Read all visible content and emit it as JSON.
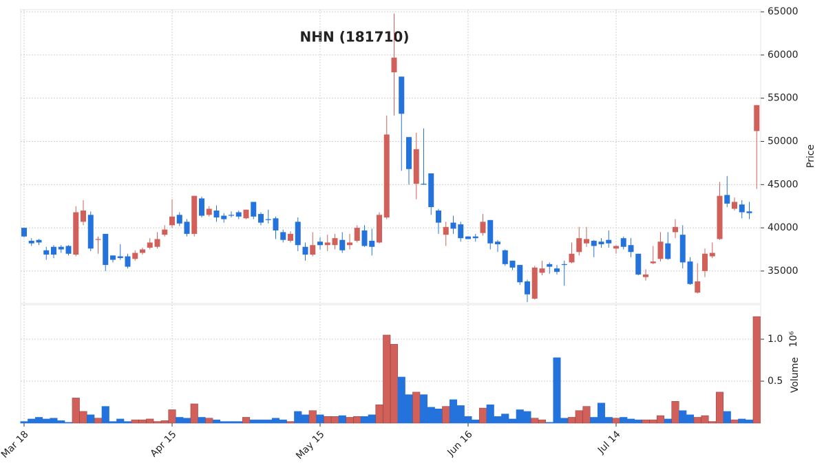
{
  "chart_data": {
    "type": "candlestick",
    "title": "NHN (181710)",
    "y_label": "Price",
    "volume_label": "Volume",
    "volume_scale": "10⁶",
    "categories": [
      "Mar 18",
      null,
      null,
      null,
      null,
      null,
      null,
      null,
      null,
      null,
      null,
      null,
      null,
      null,
      null,
      null,
      null,
      null,
      null,
      null,
      "Apr 15",
      null,
      null,
      null,
      null,
      null,
      null,
      null,
      null,
      null,
      null,
      null,
      null,
      null,
      null,
      null,
      null,
      null,
      null,
      null,
      "May 15",
      null,
      null,
      null,
      null,
      null,
      null,
      null,
      null,
      null,
      null,
      null,
      null,
      null,
      null,
      null,
      null,
      null,
      null,
      null,
      "Jun 16",
      null,
      null,
      null,
      null,
      null,
      null,
      null,
      null,
      null,
      null,
      null,
      null,
      null,
      null,
      null,
      null,
      null,
      null,
      null,
      "Jul 14",
      null,
      null,
      null,
      null,
      null,
      null,
      null,
      null,
      null,
      null,
      null,
      null,
      null,
      null,
      null,
      null,
      null,
      null,
      null
    ],
    "open": [
      40000,
      38500,
      38600,
      37400,
      37800,
      37800,
      37900,
      36900,
      40700,
      41500,
      38600,
      39300,
      36800,
      36700,
      36700,
      36400,
      37100,
      37700,
      37800,
      39200,
      40300,
      41500,
      40700,
      39300,
      43400,
      41500,
      42000,
      41400,
      41500,
      41800,
      41100,
      43000,
      41600,
      41000,
      41100,
      39500,
      38500,
      40700,
      37800,
      36900,
      38400,
      38000,
      38000,
      38600,
      38000,
      38500,
      39700,
      38500,
      38300,
      41200,
      58000,
      57500,
      50500,
      45100,
      45100,
      46300,
      42000,
      39200,
      40600,
      40400,
      39000,
      39000,
      39400,
      40900,
      38400,
      37400,
      36200,
      35700,
      33800,
      31800,
      34800,
      35800,
      35300,
      35800,
      36000,
      37200,
      38200,
      38500,
      38400,
      38600,
      37600,
      38800,
      38000,
      37000,
      34300,
      35900,
      36400,
      38200,
      39500,
      39200,
      36100,
      32500,
      35000,
      36700,
      38700,
      43800,
      42200,
      42700,
      41900,
      51200
    ],
    "high": [
      40000,
      38800,
      38700,
      37800,
      38000,
      38000,
      38000,
      42500,
      43200,
      41900,
      39000,
      39300,
      36800,
      38100,
      37000,
      37400,
      37700,
      38800,
      39500,
      40300,
      43300,
      41800,
      41000,
      43700,
      43600,
      42500,
      42600,
      41700,
      41900,
      42000,
      42100,
      43000,
      41800,
      42100,
      41300,
      39800,
      39600,
      41200,
      38300,
      39500,
      38900,
      39200,
      39300,
      39500,
      39300,
      40300,
      40300,
      39900,
      41800,
      53000,
      64800,
      57500,
      50500,
      51000,
      51500,
      46300,
      42200,
      40700,
      41400,
      40700,
      39000,
      39300,
      41600,
      40900,
      38600,
      37500,
      36200,
      35700,
      34000,
      35600,
      36200,
      36000,
      35700,
      36200,
      38300,
      40100,
      40100,
      38600,
      38800,
      39700,
      38000,
      39000,
      38800,
      37000,
      35200,
      37900,
      39500,
      39500,
      41000,
      40300,
      36600,
      35900,
      37600,
      38300,
      45300,
      46000,
      43500,
      43200,
      43000,
      54200
    ],
    "low": [
      38900,
      37900,
      38000,
      36300,
      36500,
      37100,
      36800,
      36700,
      40300,
      37300,
      37000,
      35000,
      36000,
      36300,
      35300,
      36200,
      36900,
      37500,
      37600,
      39000,
      40000,
      40200,
      39000,
      39000,
      41200,
      41300,
      40700,
      40600,
      41200,
      41000,
      41000,
      41000,
      40300,
      40500,
      38700,
      38300,
      38300,
      37300,
      36200,
      36700,
      37500,
      37300,
      37500,
      37100,
      37500,
      38300,
      37800,
      36800,
      38200,
      41000,
      53000,
      46600,
      45000,
      43300,
      45000,
      41500,
      39300,
      37900,
      39300,
      38400,
      38700,
      38400,
      39100,
      37500,
      37200,
      35600,
      35100,
      33400,
      31400,
      31700,
      34500,
      34700,
      34600,
      33300,
      35900,
      36800,
      37800,
      36600,
      37700,
      37700,
      37000,
      37500,
      36600,
      34500,
      33900,
      35800,
      36100,
      36300,
      38800,
      35300,
      33400,
      32400,
      34300,
      36500,
      38600,
      42400,
      42000,
      41100,
      41000,
      44500
    ],
    "close": [
      39000,
      38200,
      38300,
      36900,
      36900,
      37500,
      37000,
      41800,
      42000,
      37600,
      38700,
      35700,
      36300,
      36500,
      35500,
      37100,
      37500,
      38300,
      38700,
      39800,
      41300,
      40500,
      39300,
      43700,
      41400,
      42200,
      41200,
      41000,
      41400,
      41300,
      42100,
      41300,
      40600,
      40900,
      39700,
      38600,
      39300,
      38000,
      36900,
      38000,
      38000,
      38300,
      38800,
      37400,
      38300,
      40000,
      37900,
      37800,
      41500,
      50800,
      59700,
      53200,
      46800,
      49100,
      45000,
      42400,
      40600,
      40100,
      39900,
      38800,
      38700,
      38800,
      40700,
      38200,
      38100,
      35800,
      35400,
      33700,
      32300,
      35400,
      35300,
      35500,
      34900,
      35700,
      37000,
      38800,
      38700,
      37900,
      38100,
      38200,
      37900,
      37800,
      37200,
      34600,
      34600,
      36100,
      38400,
      36400,
      40100,
      36000,
      33500,
      33800,
      37000,
      37100,
      43700,
      42800,
      43000,
      41800,
      41700,
      54200
    ],
    "volume": [
      0.02,
      0.05,
      0.07,
      0.05,
      0.06,
      0.03,
      0.01,
      0.3,
      0.14,
      0.1,
      0.06,
      0.2,
      0.02,
      0.05,
      0.02,
      0.04,
      0.04,
      0.05,
      0.02,
      0.03,
      0.16,
      0.07,
      0.06,
      0.23,
      0.07,
      0.06,
      0.04,
      0.02,
      0.02,
      0.02,
      0.07,
      0.04,
      0.04,
      0.04,
      0.06,
      0.04,
      0.02,
      0.14,
      0.1,
      0.15,
      0.1,
      0.08,
      0.08,
      0.09,
      0.07,
      0.08,
      0.08,
      0.1,
      0.22,
      1.05,
      0.94,
      0.55,
      0.34,
      0.37,
      0.34,
      0.19,
      0.17,
      0.2,
      0.28,
      0.21,
      0.08,
      0.04,
      0.18,
      0.22,
      0.08,
      0.11,
      0.05,
      0.16,
      0.14,
      0.06,
      0.04,
      0.01,
      0.78,
      0.06,
      0.07,
      0.15,
      0.2,
      0.07,
      0.24,
      0.07,
      0.06,
      0.07,
      0.05,
      0.04,
      0.04,
      0.04,
      0.09,
      0.05,
      0.26,
      0.15,
      0.1,
      0.07,
      0.09,
      0.02,
      0.37,
      0.14,
      0.04,
      0.05,
      0.04,
      1.27
    ],
    "up_color": "#d2605a",
    "down_color": "#2472dc",
    "ylim": [
      31250,
      65250
    ],
    "yticks": [
      35000,
      40000,
      45000,
      50000,
      55000,
      60000,
      65000
    ],
    "volume_lim": [
      0,
      1.41
    ],
    "volume_ticks": [
      0.5,
      {
        "value": 1,
        "label": "1.0"
      }
    ],
    "grid": true
  }
}
